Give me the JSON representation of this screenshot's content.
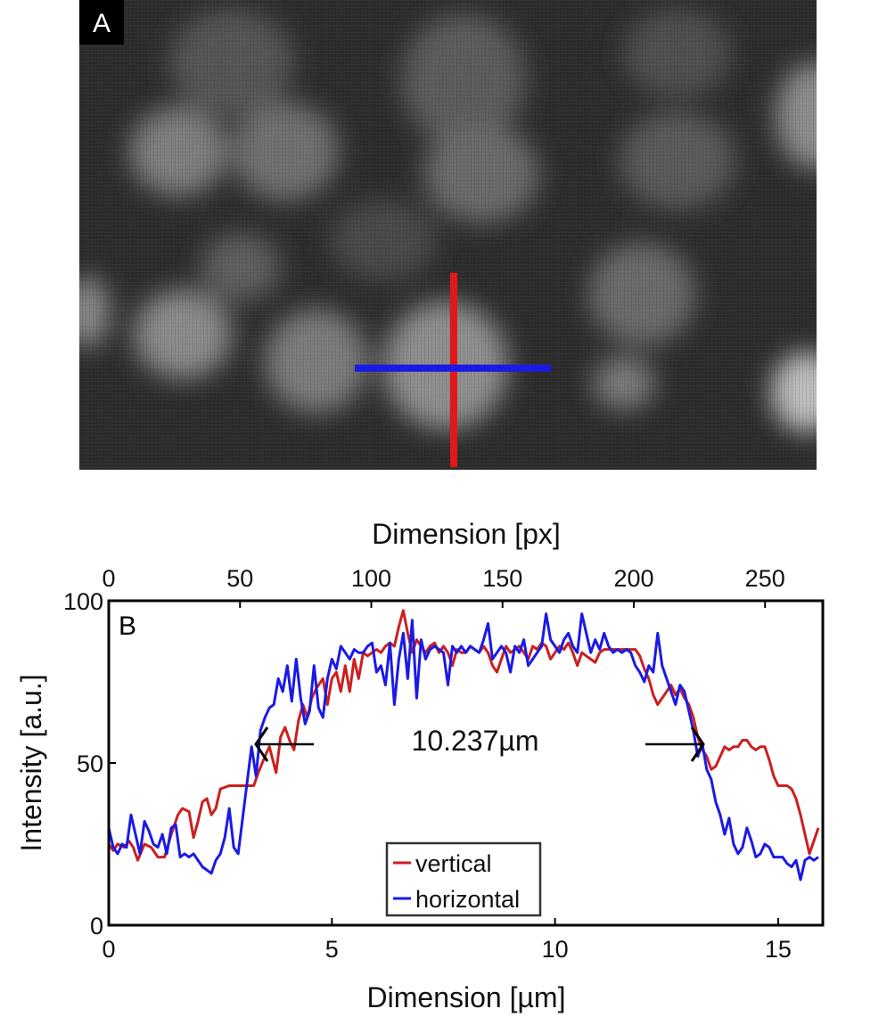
{
  "panel_a": {
    "label": "A",
    "description_lines": [
      "vertical profile line",
      "horizontal profile line"
    ]
  },
  "chart_data": {
    "type": "line",
    "panel_label": "B",
    "title": "",
    "xlabel": "Dimension [µm]",
    "x2label": "Dimension [px]",
    "ylabel": "Intensity [a.u.]",
    "xlim": [
      0,
      16
    ],
    "x2lim": [
      0,
      272
    ],
    "ylim": [
      0,
      100
    ],
    "x_ticks": [
      0,
      5,
      10,
      15
    ],
    "x2_ticks": [
      0,
      50,
      100,
      150,
      200,
      250
    ],
    "y_ticks": [
      0,
      50,
      100
    ],
    "grid": false,
    "legend_position": "bottom-center",
    "annotation": "10.237µm",
    "series": [
      {
        "name": "vertical",
        "color": "#cc1f1f",
        "points": [
          [
            0,
            25
          ],
          [
            0.1,
            23
          ],
          [
            0.2,
            25
          ],
          [
            0.35,
            24
          ],
          [
            0.45,
            26
          ],
          [
            0.55,
            24
          ],
          [
            0.65,
            20
          ],
          [
            0.8,
            25
          ],
          [
            0.95,
            24
          ],
          [
            1.1,
            21
          ],
          [
            1.25,
            21
          ],
          [
            1.4,
            28
          ],
          [
            1.55,
            34
          ],
          [
            1.65,
            36
          ],
          [
            1.8,
            35
          ],
          [
            1.9,
            27
          ],
          [
            2.0,
            32
          ],
          [
            2.1,
            38
          ],
          [
            2.2,
            39
          ],
          [
            2.3,
            34
          ],
          [
            2.4,
            36
          ],
          [
            2.5,
            42
          ],
          [
            2.7,
            43
          ],
          [
            2.9,
            43
          ],
          [
            3.1,
            43
          ],
          [
            3.25,
            43
          ],
          [
            3.35,
            47
          ],
          [
            3.5,
            52
          ],
          [
            3.6,
            55
          ],
          [
            3.75,
            47
          ],
          [
            3.85,
            58
          ],
          [
            3.95,
            61
          ],
          [
            4.05,
            57
          ],
          [
            4.15,
            54
          ],
          [
            4.25,
            63
          ],
          [
            4.35,
            68
          ],
          [
            4.45,
            64
          ],
          [
            4.55,
            70
          ],
          [
            4.65,
            73
          ],
          [
            4.8,
            76
          ],
          [
            4.9,
            68
          ],
          [
            5.0,
            76
          ],
          [
            5.1,
            78
          ],
          [
            5.2,
            72
          ],
          [
            5.3,
            80
          ],
          [
            5.4,
            72
          ],
          [
            5.5,
            82
          ],
          [
            5.6,
            76
          ],
          [
            5.7,
            84
          ],
          [
            5.8,
            83
          ],
          [
            5.9,
            84
          ],
          [
            6.0,
            85
          ],
          [
            6.1,
            84
          ],
          [
            6.2,
            86
          ],
          [
            6.3,
            87
          ],
          [
            6.4,
            86
          ],
          [
            6.5,
            92
          ],
          [
            6.6,
            97
          ],
          [
            6.7,
            90
          ],
          [
            6.8,
            84
          ],
          [
            6.9,
            88
          ],
          [
            7.0,
            86
          ],
          [
            7.1,
            84
          ],
          [
            7.2,
            86
          ],
          [
            7.3,
            87
          ],
          [
            7.4,
            84
          ],
          [
            7.5,
            86
          ],
          [
            7.6,
            84
          ],
          [
            7.7,
            80
          ],
          [
            7.8,
            85
          ],
          [
            7.9,
            84
          ],
          [
            8.0,
            84
          ],
          [
            8.1,
            86
          ],
          [
            8.2,
            85
          ],
          [
            8.3,
            84
          ],
          [
            8.4,
            86
          ],
          [
            8.5,
            84
          ],
          [
            8.6,
            80
          ],
          [
            8.7,
            78
          ],
          [
            8.8,
            82
          ],
          [
            8.9,
            86
          ],
          [
            9.0,
            84
          ],
          [
            9.1,
            85
          ],
          [
            9.2,
            86
          ],
          [
            9.3,
            84
          ],
          [
            9.4,
            82
          ],
          [
            9.5,
            86
          ],
          [
            9.6,
            85
          ],
          [
            9.7,
            87
          ],
          [
            9.8,
            86
          ],
          [
            9.9,
            82
          ],
          [
            10.0,
            84
          ],
          [
            10.1,
            86
          ],
          [
            10.2,
            85
          ],
          [
            10.3,
            87
          ],
          [
            10.4,
            84
          ],
          [
            10.5,
            80
          ],
          [
            10.6,
            84
          ],
          [
            10.7,
            83
          ],
          [
            10.8,
            82
          ],
          [
            10.9,
            81
          ],
          [
            11.0,
            84
          ],
          [
            11.1,
            85
          ],
          [
            11.2,
            85
          ],
          [
            11.4,
            85
          ],
          [
            11.6,
            85
          ],
          [
            11.8,
            85
          ],
          [
            11.9,
            83
          ],
          [
            12.0,
            79
          ],
          [
            12.1,
            76
          ],
          [
            12.2,
            71
          ],
          [
            12.3,
            68
          ],
          [
            12.4,
            70
          ],
          [
            12.5,
            72
          ],
          [
            12.6,
            74
          ],
          [
            12.7,
            71
          ],
          [
            12.8,
            73
          ],
          [
            12.9,
            70
          ],
          [
            13.0,
            68
          ],
          [
            13.1,
            64
          ],
          [
            13.2,
            58
          ],
          [
            13.3,
            54
          ],
          [
            13.4,
            52
          ],
          [
            13.5,
            48
          ],
          [
            13.6,
            49
          ],
          [
            13.7,
            52
          ],
          [
            13.8,
            55
          ],
          [
            13.9,
            54
          ],
          [
            14.0,
            55
          ],
          [
            14.1,
            55
          ],
          [
            14.2,
            57
          ],
          [
            14.3,
            57
          ],
          [
            14.4,
            55
          ],
          [
            14.5,
            54
          ],
          [
            14.6,
            55
          ],
          [
            14.7,
            55
          ],
          [
            14.8,
            51
          ],
          [
            14.9,
            46
          ],
          [
            15.0,
            43
          ],
          [
            15.1,
            43
          ],
          [
            15.2,
            43
          ],
          [
            15.3,
            42
          ],
          [
            15.4,
            39
          ],
          [
            15.5,
            34
          ],
          [
            15.6,
            28
          ],
          [
            15.7,
            22
          ],
          [
            15.8,
            26
          ],
          [
            15.9,
            30
          ]
        ]
      },
      {
        "name": "horizontal",
        "color": "#1a1ae6",
        "points": [
          [
            0,
            30
          ],
          [
            0.1,
            24
          ],
          [
            0.2,
            22
          ],
          [
            0.3,
            25
          ],
          [
            0.4,
            24
          ],
          [
            0.5,
            34
          ],
          [
            0.6,
            28
          ],
          [
            0.7,
            22
          ],
          [
            0.8,
            32
          ],
          [
            0.9,
            29
          ],
          [
            1.0,
            25
          ],
          [
            1.1,
            24
          ],
          [
            1.2,
            28
          ],
          [
            1.3,
            22
          ],
          [
            1.4,
            30
          ],
          [
            1.5,
            31
          ],
          [
            1.6,
            21
          ],
          [
            1.7,
            22
          ],
          [
            1.8,
            21
          ],
          [
            1.9,
            22
          ],
          [
            2.0,
            20
          ],
          [
            2.1,
            18
          ],
          [
            2.2,
            17
          ],
          [
            2.3,
            16
          ],
          [
            2.4,
            20
          ],
          [
            2.5,
            22
          ],
          [
            2.6,
            27
          ],
          [
            2.7,
            36
          ],
          [
            2.8,
            24
          ],
          [
            2.9,
            22
          ],
          [
            3.0,
            33
          ],
          [
            3.1,
            44
          ],
          [
            3.2,
            55
          ],
          [
            3.3,
            46
          ],
          [
            3.4,
            60
          ],
          [
            3.5,
            64
          ],
          [
            3.6,
            67
          ],
          [
            3.7,
            68
          ],
          [
            3.8,
            76
          ],
          [
            3.9,
            72
          ],
          [
            4.0,
            80
          ],
          [
            4.1,
            69
          ],
          [
            4.2,
            82
          ],
          [
            4.3,
            70
          ],
          [
            4.4,
            62
          ],
          [
            4.5,
            66
          ],
          [
            4.6,
            80
          ],
          [
            4.7,
            67
          ],
          [
            4.8,
            64
          ],
          [
            4.9,
            76
          ],
          [
            5.0,
            82
          ],
          [
            5.1,
            79
          ],
          [
            5.2,
            86
          ],
          [
            5.3,
            84
          ],
          [
            5.4,
            82
          ],
          [
            5.5,
            85
          ],
          [
            5.6,
            84
          ],
          [
            5.7,
            84
          ],
          [
            5.8,
            86
          ],
          [
            5.9,
            87
          ],
          [
            6.0,
            78
          ],
          [
            6.1,
            80
          ],
          [
            6.2,
            74
          ],
          [
            6.3,
            87
          ],
          [
            6.4,
            68
          ],
          [
            6.5,
            82
          ],
          [
            6.6,
            90
          ],
          [
            6.7,
            76
          ],
          [
            6.8,
            94
          ],
          [
            6.9,
            70
          ],
          [
            7.0,
            88
          ],
          [
            7.1,
            82
          ],
          [
            7.2,
            85
          ],
          [
            7.3,
            86
          ],
          [
            7.4,
            85
          ],
          [
            7.5,
            84
          ],
          [
            7.6,
            74
          ],
          [
            7.7,
            86
          ],
          [
            7.8,
            84
          ],
          [
            7.9,
            86
          ],
          [
            8.0,
            84
          ],
          [
            8.1,
            86
          ],
          [
            8.2,
            85
          ],
          [
            8.3,
            84
          ],
          [
            8.4,
            88
          ],
          [
            8.5,
            93
          ],
          [
            8.6,
            82
          ],
          [
            8.7,
            84
          ],
          [
            8.8,
            86
          ],
          [
            8.9,
            84
          ],
          [
            9.0,
            78
          ],
          [
            9.1,
            86
          ],
          [
            9.2,
            84
          ],
          [
            9.3,
            88
          ],
          [
            9.4,
            80
          ],
          [
            9.5,
            82
          ],
          [
            9.6,
            84
          ],
          [
            9.7,
            86
          ],
          [
            9.8,
            96
          ],
          [
            9.9,
            88
          ],
          [
            10.0,
            86
          ],
          [
            10.1,
            84
          ],
          [
            10.2,
            88
          ],
          [
            10.3,
            90
          ],
          [
            10.4,
            86
          ],
          [
            10.5,
            84
          ],
          [
            10.6,
            96
          ],
          [
            10.7,
            90
          ],
          [
            10.8,
            84
          ],
          [
            10.9,
            88
          ],
          [
            11.0,
            85
          ],
          [
            11.1,
            90
          ],
          [
            11.2,
            86
          ],
          [
            11.3,
            84
          ],
          [
            11.4,
            85
          ],
          [
            11.5,
            84
          ],
          [
            11.6,
            85
          ],
          [
            11.7,
            84
          ],
          [
            11.8,
            80
          ],
          [
            11.9,
            78
          ],
          [
            12.0,
            75
          ],
          [
            12.1,
            80
          ],
          [
            12.2,
            78
          ],
          [
            12.3,
            90
          ],
          [
            12.4,
            80
          ],
          [
            12.5,
            76
          ],
          [
            12.6,
            72
          ],
          [
            12.7,
            68
          ],
          [
            12.8,
            74
          ],
          [
            12.9,
            72
          ],
          [
            13.0,
            66
          ],
          [
            13.1,
            60
          ],
          [
            13.2,
            52
          ],
          [
            13.3,
            56
          ],
          [
            13.4,
            48
          ],
          [
            13.5,
            45
          ],
          [
            13.6,
            38
          ],
          [
            13.7,
            34
          ],
          [
            13.8,
            28
          ],
          [
            13.9,
            33
          ],
          [
            14.0,
            25
          ],
          [
            14.1,
            22
          ],
          [
            14.2,
            24
          ],
          [
            14.3,
            30
          ],
          [
            14.4,
            26
          ],
          [
            14.5,
            21
          ],
          [
            14.6,
            22
          ],
          [
            14.7,
            25
          ],
          [
            14.8,
            24
          ],
          [
            14.9,
            21
          ],
          [
            15.0,
            21
          ],
          [
            15.1,
            21
          ],
          [
            15.2,
            19
          ],
          [
            15.3,
            18
          ],
          [
            15.4,
            20
          ],
          [
            15.5,
            14
          ],
          [
            15.6,
            20
          ],
          [
            15.7,
            21
          ],
          [
            15.8,
            20
          ],
          [
            15.9,
            21
          ]
        ]
      }
    ]
  }
}
